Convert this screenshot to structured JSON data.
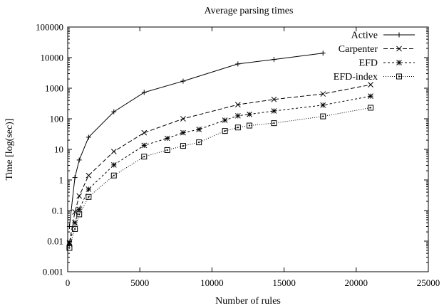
{
  "chart_data": {
    "type": "line",
    "title": "Average parsing times",
    "xlabel": "Number of rules",
    "ylabel": "Time [log(sec)]",
    "xlim": [
      0,
      25000
    ],
    "ylim": [
      0.001,
      100000
    ],
    "y_scale": "log",
    "grid": false,
    "legend_position": "top-right",
    "x_ticks": [
      0,
      5000,
      10000,
      15000,
      20000,
      25000
    ],
    "x_tick_labels": [
      "0",
      "5000",
      "10000",
      "15000",
      "20000",
      "25000"
    ],
    "y_ticks": [
      0.001,
      0.01,
      0.1,
      1,
      10,
      100,
      1000,
      10000,
      100000
    ],
    "y_tick_labels": [
      "0.001",
      "0.01",
      "0.1",
      "1",
      "10",
      "100",
      "1000",
      "10000",
      "100000"
    ],
    "series": [
      {
        "name": "Active",
        "marker": "plus",
        "dash": "solid",
        "x": [
          120,
          500,
          800,
          1450,
          3200,
          5300,
          8000,
          11800,
          14300,
          17700
        ],
        "y": [
          0.03,
          1.2,
          4.5,
          25,
          170,
          730,
          1700,
          6200,
          8700,
          14000
        ]
      },
      {
        "name": "Carpenter",
        "marker": "x",
        "dash": "dashed",
        "x": [
          120,
          500,
          800,
          1450,
          3200,
          5300,
          8000,
          11800,
          14300,
          17700,
          21000
        ],
        "y": [
          0.009,
          0.09,
          0.3,
          1.4,
          8.5,
          35,
          100,
          290,
          430,
          650,
          1300
        ]
      },
      {
        "name": "EFD",
        "marker": "star",
        "dash": "short-dashed",
        "x": [
          120,
          500,
          800,
          1450,
          3200,
          5300,
          6900,
          8000,
          9100,
          10900,
          11800,
          12600,
          14300,
          17700,
          21000
        ],
        "y": [
          0.008,
          0.04,
          0.11,
          0.5,
          3.1,
          13.5,
          23,
          35,
          45,
          90,
          125,
          140,
          180,
          280,
          550
        ]
      },
      {
        "name": "EFD-index",
        "marker": "box",
        "dash": "dotted",
        "x": [
          120,
          500,
          800,
          1450,
          3200,
          5300,
          6900,
          8000,
          9100,
          10900,
          11800,
          12600,
          14300,
          17700,
          21000
        ],
        "y": [
          0.006,
          0.025,
          0.075,
          0.28,
          1.4,
          5.8,
          9.5,
          13,
          17,
          40,
          52,
          60,
          72,
          120,
          230
        ]
      }
    ]
  }
}
